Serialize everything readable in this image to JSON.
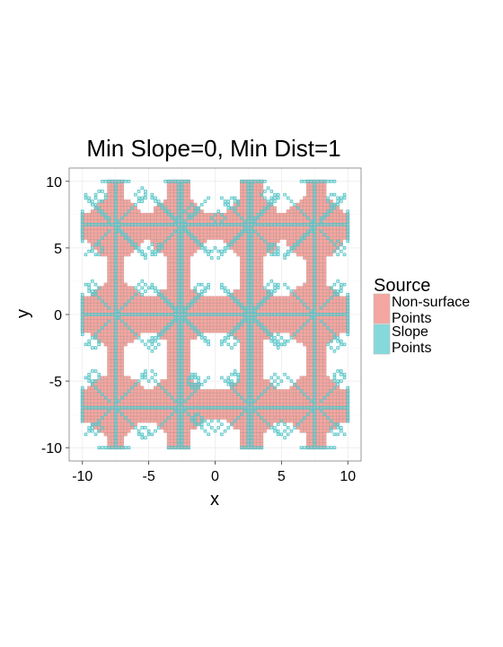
{
  "chart_data": {
    "type": "heatmap",
    "title": "Min Slope=0, Min Dist=1",
    "xlabel": "x",
    "ylabel": "y",
    "xlim": [
      -11,
      11
    ],
    "ylim": [
      -11,
      11
    ],
    "x_ticks": [
      -10,
      -5,
      0,
      5,
      10
    ],
    "y_ticks": [
      -10,
      -5,
      0,
      5,
      10
    ],
    "grid": true,
    "legend": {
      "title": "Source",
      "placement": "right",
      "entries": [
        {
          "label_lines": [
            "Non-surface",
            "Points"
          ],
          "color": "#F8766D"
        },
        {
          "label_lines": [
            "Slope",
            "Points"
          ],
          "color": "#00BFC4"
        }
      ]
    },
    "grid_step": 0.25,
    "colors": {
      "panel_bg": "#FFFFFF",
      "grid": "#EBEBEB",
      "non_surface_fill": "#F4A6A0",
      "slope_stroke": "#5CC6C9",
      "cell_stroke": "#7A7A7A"
    },
    "series": [
      {
        "name": "Non-surface Points",
        "bands": [
          {
            "y": [
              5.6,
              7.6
            ],
            "x": [
              -10,
              10
            ]
          },
          {
            "y": [
              -1.3,
              1.3
            ],
            "x": [
              -10,
              10
            ]
          },
          {
            "y": [
              -8.0,
              -5.7
            ],
            "x": [
              -10,
              10
            ]
          },
          {
            "y": [
              -10,
              10
            ],
            "x": [
              -8.2,
              -6.8
            ]
          },
          {
            "y": [
              -10,
              10
            ],
            "x": [
              -3.7,
              -1.9
            ]
          },
          {
            "y": [
              -10,
              10
            ],
            "x": [
              1.9,
              3.6
            ]
          },
          {
            "y": [
              -10,
              10
            ],
            "x": [
              6.8,
              8.4
            ]
          }
        ],
        "blobs": [
          {
            "cx": -7.5,
            "cy": 6.5,
            "r": 2.3
          },
          {
            "cx": -2.8,
            "cy": 6.5,
            "r": 2.3
          },
          {
            "cx": 2.8,
            "cy": 6.5,
            "r": 2.3
          },
          {
            "cx": 7.5,
            "cy": 6.5,
            "r": 2.4
          },
          {
            "cx": -7.5,
            "cy": 0.0,
            "r": 2.4
          },
          {
            "cx": -2.8,
            "cy": 0.0,
            "r": 2.2
          },
          {
            "cx": 2.8,
            "cy": 0.0,
            "r": 2.2
          },
          {
            "cx": 7.5,
            "cy": 0.0,
            "r": 2.4
          },
          {
            "cx": -7.5,
            "cy": -6.8,
            "r": 2.4
          },
          {
            "cx": -2.8,
            "cy": -6.8,
            "r": 2.2
          },
          {
            "cx": 2.8,
            "cy": -6.8,
            "r": 2.2
          },
          {
            "cx": 7.5,
            "cy": -6.8,
            "r": 2.3
          }
        ],
        "holes": [
          {
            "cx": -5.2,
            "cy": 3.4,
            "r": 1.4
          },
          {
            "cx": 0.0,
            "cy": 3.4,
            "r": 1.6
          },
          {
            "cx": 5.2,
            "cy": 3.4,
            "r": 1.5
          },
          {
            "cx": -5.2,
            "cy": -3.3,
            "r": 1.4
          },
          {
            "cx": 0.0,
            "cy": -3.6,
            "r": 2.0
          },
          {
            "cx": 5.2,
            "cy": -3.3,
            "r": 1.4
          },
          {
            "cx": -5.2,
            "cy": 9.2,
            "r": 1.3
          },
          {
            "cx": 0.0,
            "cy": 9.3,
            "r": 1.4
          },
          {
            "cx": 5.2,
            "cy": 9.2,
            "r": 1.3
          },
          {
            "cx": -5.2,
            "cy": -9.4,
            "r": 1.3
          },
          {
            "cx": 0.0,
            "cy": -9.4,
            "r": 1.6
          },
          {
            "cx": 5.2,
            "cy": -9.4,
            "r": 1.3
          }
        ]
      },
      {
        "name": "Slope Points",
        "horizontal_lines": [
          {
            "y": 6.7,
            "x": [
              -10,
              10
            ]
          },
          {
            "y": 0.0,
            "x": [
              -10,
              10
            ]
          },
          {
            "y": -6.9,
            "x": [
              -10,
              10
            ]
          },
          {
            "y": 10.0,
            "x": [
              -8.5,
              -6.5
            ]
          },
          {
            "y": 10.0,
            "x": [
              -3.8,
              -1.8
            ]
          },
          {
            "y": 10.0,
            "x": [
              1.8,
              3.8
            ]
          },
          {
            "y": 10.0,
            "x": [
              6.5,
              9.2
            ]
          },
          {
            "y": -10.0,
            "x": [
              -8.8,
              -6.5
            ]
          },
          {
            "y": -10.0,
            "x": [
              -3.6,
              -1.8
            ]
          },
          {
            "y": -10.0,
            "x": [
              1.8,
              3.6
            ]
          },
          {
            "y": -10.0,
            "x": [
              6.5,
              9.0
            ]
          }
        ],
        "vertical_lines": [
          {
            "x": -7.6,
            "y": [
              -10,
              10
            ]
          },
          {
            "x": -2.6,
            "y": [
              -10,
              10
            ]
          },
          {
            "x": 2.6,
            "y": [
              -10,
              10
            ]
          },
          {
            "x": 7.6,
            "y": [
              -10,
              10
            ]
          },
          {
            "x": -10.0,
            "y": [
              5.5,
              7.8
            ]
          },
          {
            "x": -10.0,
            "y": [
              -1.5,
              1.7
            ]
          },
          {
            "x": -10.0,
            "y": [
              -8.0,
              -5.5
            ]
          },
          {
            "x": 10.0,
            "y": [
              5.5,
              7.8
            ]
          },
          {
            "x": 10.0,
            "y": [
              -1.5,
              1.5
            ]
          },
          {
            "x": 10.0,
            "y": [
              -8.0,
              -5.5
            ]
          }
        ],
        "rays": [
          {
            "cx": -7.6,
            "cy": 6.7,
            "len": 2.4
          },
          {
            "cx": -2.6,
            "cy": 6.7,
            "len": 2.3
          },
          {
            "cx": 2.6,
            "cy": 6.7,
            "len": 2.3
          },
          {
            "cx": 7.6,
            "cy": 6.7,
            "len": 2.4
          },
          {
            "cx": -7.6,
            "cy": 0.0,
            "len": 2.4
          },
          {
            "cx": -2.6,
            "cy": 0.0,
            "len": 2.2
          },
          {
            "cx": 2.6,
            "cy": 0.0,
            "len": 2.2
          },
          {
            "cx": 7.6,
            "cy": 0.0,
            "len": 2.4
          },
          {
            "cx": -7.6,
            "cy": -6.9,
            "len": 2.4
          },
          {
            "cx": -2.6,
            "cy": -6.9,
            "len": 2.2
          },
          {
            "cx": 2.6,
            "cy": -6.9,
            "len": 2.2
          },
          {
            "cx": 7.6,
            "cy": -6.9,
            "len": 2.4
          }
        ],
        "clusters": [
          {
            "cx": -5.6,
            "cy": 9.0
          },
          {
            "cx": -1.7,
            "cy": 7.8
          },
          {
            "cx": 0.3,
            "cy": 7.3
          },
          {
            "cx": 4.0,
            "cy": 9.0
          },
          {
            "cx": 9.3,
            "cy": 5.0
          },
          {
            "cx": -8.9,
            "cy": 4.9
          },
          {
            "cx": -4.5,
            "cy": 4.9
          },
          {
            "cx": 0.0,
            "cy": 4.6
          },
          {
            "cx": 4.4,
            "cy": 4.9
          },
          {
            "cx": -9.2,
            "cy": 2.0
          },
          {
            "cx": -5.5,
            "cy": 2.0
          },
          {
            "cx": 4.3,
            "cy": 2.0
          },
          {
            "cx": 9.2,
            "cy": 2.0
          },
          {
            "cx": -9.2,
            "cy": -2.1
          },
          {
            "cx": -4.8,
            "cy": -2.2
          },
          {
            "cx": 4.7,
            "cy": -2.0
          },
          {
            "cx": 9.0,
            "cy": -2.2
          },
          {
            "cx": -9.2,
            "cy": -4.6
          },
          {
            "cx": -5.0,
            "cy": -4.6
          },
          {
            "cx": -1.6,
            "cy": -5.0
          },
          {
            "cx": 1.4,
            "cy": -4.8
          },
          {
            "cx": 4.6,
            "cy": -5.0
          },
          {
            "cx": 9.3,
            "cy": -4.7
          },
          {
            "cx": -5.4,
            "cy": -8.8
          },
          {
            "cx": 0.0,
            "cy": -8.3
          },
          {
            "cx": 5.0,
            "cy": -8.5
          },
          {
            "cx": -9.0,
            "cy": -8.6
          },
          {
            "cx": 9.1,
            "cy": -8.6
          },
          {
            "cx": -8.6,
            "cy": 8.8
          },
          {
            "cx": 8.9,
            "cy": 8.7
          },
          {
            "cx": -1.2,
            "cy": 1.9
          },
          {
            "cx": 1.2,
            "cy": -2.0
          },
          {
            "cx": -1.3,
            "cy": -7.9
          },
          {
            "cx": 1.3,
            "cy": 8.3
          }
        ]
      }
    ]
  }
}
